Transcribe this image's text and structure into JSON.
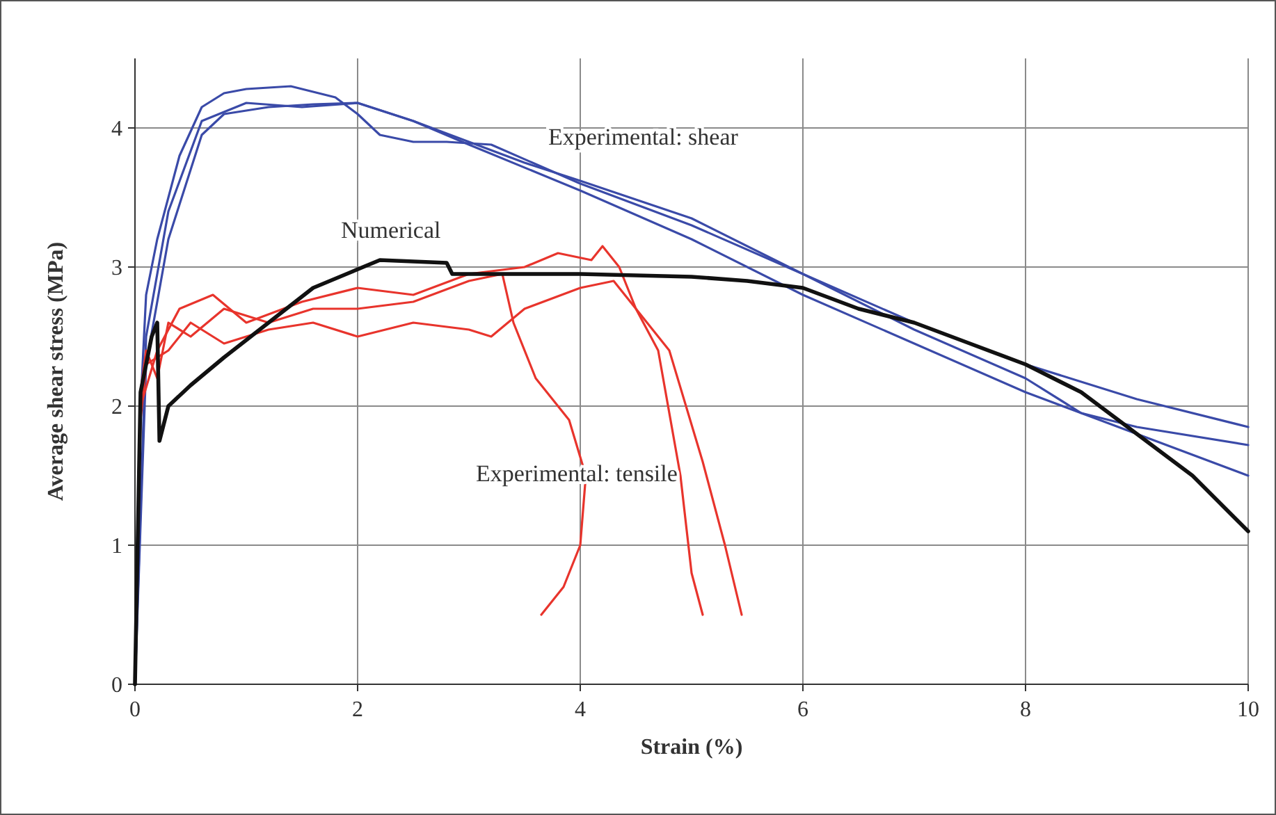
{
  "chart_data": {
    "type": "line",
    "xlabel": "Strain (%)",
    "ylabel": "Average shear stress (MPa)",
    "xlim": [
      0,
      10
    ],
    "ylim": [
      0,
      4.5
    ],
    "xticks": [
      0,
      2,
      4,
      6,
      8,
      10
    ],
    "yticks": [
      0,
      1,
      2,
      3,
      4
    ],
    "grid": true,
    "marker": "none",
    "line_style": "solid",
    "series": [
      {
        "color": "#3a4aa8",
        "x": [
          0,
          0.05,
          0.1,
          0.2,
          0.4,
          0.6,
          0.8,
          1.0,
          1.4,
          1.8,
          2.0,
          2.2,
          2.5,
          2.8,
          3.2,
          4,
          5,
          6,
          7,
          8,
          9,
          10
        ],
        "values": [
          0,
          2.0,
          2.8,
          3.2,
          3.8,
          4.15,
          4.25,
          4.28,
          4.3,
          4.22,
          4.1,
          3.95,
          3.9,
          3.9,
          3.88,
          3.6,
          3.3,
          2.95,
          2.6,
          2.3,
          2.05,
          1.85
        ]
      },
      {
        "color": "#3a4aa8",
        "x": [
          0,
          0.1,
          0.3,
          0.6,
          1,
          1.5,
          2,
          2.5,
          3,
          4,
          5,
          6,
          7,
          8,
          8.5,
          9,
          10
        ],
        "values": [
          0,
          2.5,
          3.4,
          4.05,
          4.18,
          4.15,
          4.18,
          4.05,
          3.88,
          3.55,
          3.2,
          2.8,
          2.45,
          2.1,
          1.95,
          1.85,
          1.72
        ]
      },
      {
        "color": "#3a4aa8",
        "x": [
          0,
          0.1,
          0.3,
          0.6,
          0.8,
          1.2,
          1.6,
          2,
          2.5,
          3,
          3.5,
          4,
          5,
          6,
          7,
          8,
          8.5,
          9,
          10
        ],
        "values": [
          0,
          2.3,
          3.2,
          3.95,
          4.1,
          4.15,
          4.17,
          4.18,
          4.05,
          3.9,
          3.75,
          3.62,
          3.35,
          2.95,
          2.55,
          2.2,
          1.95,
          1.8,
          1.5
        ]
      },
      {
        "color": "#e8342c",
        "x": [
          0,
          0.05,
          0.1,
          0.2,
          0.3,
          0.5,
          0.8,
          1.2,
          1.6,
          2,
          2.5,
          3,
          3.3,
          3.4,
          3.6,
          3.9,
          4.05,
          4.0,
          3.85,
          3.65
        ],
        "values": [
          0,
          2.1,
          2.4,
          2.2,
          2.6,
          2.5,
          2.7,
          2.6,
          2.7,
          2.7,
          2.75,
          2.9,
          2.95,
          2.6,
          2.2,
          1.9,
          1.5,
          1.0,
          0.7,
          0.5
        ]
      },
      {
        "color": "#e8342c",
        "x": [
          0,
          0.05,
          0.1,
          0.3,
          0.5,
          0.8,
          1.2,
          1.6,
          2,
          2.5,
          3,
          3.2,
          3.5,
          4,
          4.3,
          4.5,
          4.7,
          4.9,
          5.0,
          5.1
        ],
        "values": [
          0,
          1.9,
          2.3,
          2.4,
          2.6,
          2.45,
          2.55,
          2.6,
          2.5,
          2.6,
          2.55,
          2.5,
          2.7,
          2.85,
          2.9,
          2.7,
          2.4,
          1.5,
          0.8,
          0.5
        ]
      },
      {
        "color": "#e8342c",
        "x": [
          0,
          0.05,
          0.2,
          0.4,
          0.7,
          1,
          1.5,
          2,
          2.5,
          3,
          3.5,
          3.8,
          4.1,
          4.2,
          4.35,
          4.5,
          4.8,
          5.1,
          5.3,
          5.45
        ],
        "values": [
          0,
          2.0,
          2.4,
          2.7,
          2.8,
          2.6,
          2.75,
          2.85,
          2.8,
          2.95,
          3.0,
          3.1,
          3.05,
          3.15,
          3.0,
          2.7,
          2.4,
          1.6,
          1.0,
          0.5
        ]
      },
      {
        "color": "#111111",
        "x": [
          0,
          0.05,
          0.1,
          0.15,
          0.2,
          0.22,
          0.3,
          0.5,
          0.8,
          1.2,
          1.6,
          1.9,
          2.2,
          2.8,
          2.85,
          3.5,
          4,
          5,
          5.5,
          6,
          6.5,
          7,
          7.5,
          8,
          8.5,
          9,
          9.5,
          10
        ],
        "values": [
          0,
          2.1,
          2.3,
          2.5,
          2.6,
          1.75,
          2.0,
          2.15,
          2.35,
          2.6,
          2.85,
          2.95,
          3.05,
          3.03,
          2.95,
          2.95,
          2.95,
          2.93,
          2.9,
          2.85,
          2.7,
          2.6,
          2.45,
          2.3,
          2.1,
          1.8,
          1.5,
          1.1
        ]
      }
    ],
    "annotations": [
      "Experimental: shear",
      "Numerical",
      "Experimental: tensile"
    ]
  }
}
